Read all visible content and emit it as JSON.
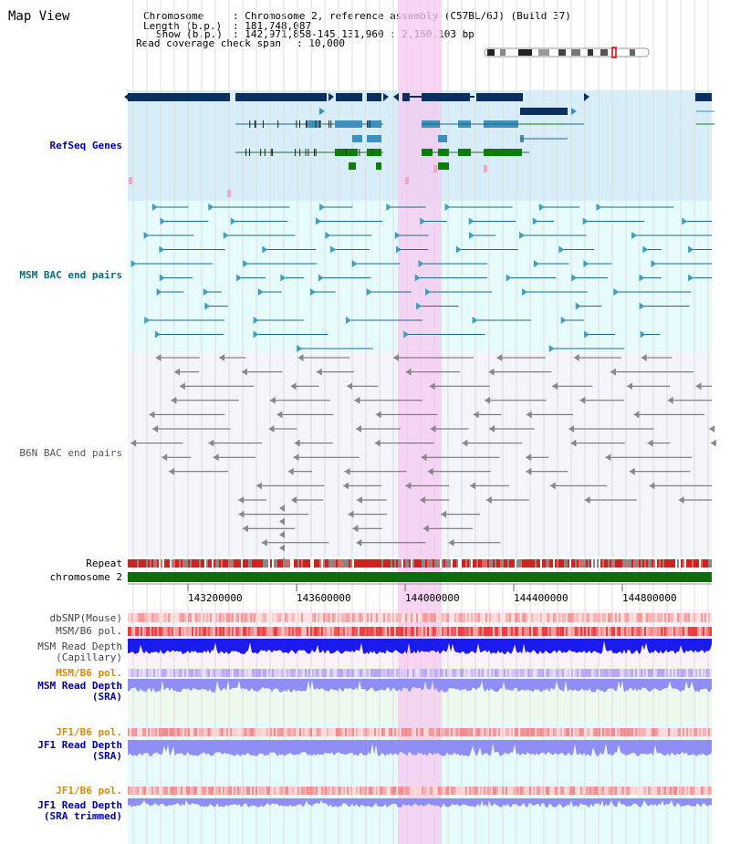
{
  "page_title": "Map View",
  "info": {
    "chromosome_label": "Chromosome",
    "chromosome_value": ": Chromosome 2, reference assembly (C57BL/6J) (Build 37)",
    "length_label": "Length (b.p.)",
    "length_value": ": 181,748,087",
    "show_label": "Show (b.p.)",
    "show_value": ": 142,971,858-145,131,960 : 2,160,103 bp",
    "coverage_label": "Read coverage check span",
    "coverage_value": ": 10,000"
  },
  "tracks": {
    "refseq": "RefSeq Genes",
    "msm_bac": "MSM BAC end pairs",
    "b6n_bac": "B6N BAC end pairs",
    "repeat": "Repeat",
    "chromosome": "chromosome 2",
    "dbsnp": "dbSNP(Mouse)",
    "msm_pol_1": "MSM/B6 pol.",
    "msm_depth_cap_1": "MSM Read Depth",
    "msm_depth_cap_2": "(Capillary)",
    "msm_pol_2": "MSM/B6 pol.",
    "msm_depth_sra_1": "MSM Read Depth",
    "msm_depth_sra_2": "(SRA)",
    "jf1_pol_1": "JF1/B6 pol.",
    "jf1_depth_sra_1": "JF1 Read Depth",
    "jf1_depth_sra_2": "(SRA)",
    "jf1_pol_2": "JF1/B6 pol.",
    "jf1_depth_trim_1": "JF1 Read Depth",
    "jf1_depth_trim_2": "(SRA trimmed)"
  },
  "axis": {
    "ticks": [
      "143200000",
      "143600000",
      "144000000",
      "144400000",
      "144800000"
    ]
  },
  "colors": {
    "refseq_bg": "#d7eef8",
    "bac_msm_bg": "#e6fbfb",
    "bac_b6n_bg": "#f4f4fb",
    "highlight": "#f6c8ef",
    "dark_navy": "#0b2f5f",
    "mid_blue": "#3f8fbd",
    "green_gene": "#0b7d0b",
    "teal_line": "#1a6d8a",
    "gray_line": "#666666",
    "chrom_green": "#0b6e0b",
    "repeat_red": "#cc2222",
    "depth_blue": "#1a1aee",
    "depth_lavender": "#8e8ef4",
    "track_blue": "#0000aa",
    "track_orange": "#d98a00",
    "track_teal": "#006d80",
    "track_gray": "#555555"
  }
}
